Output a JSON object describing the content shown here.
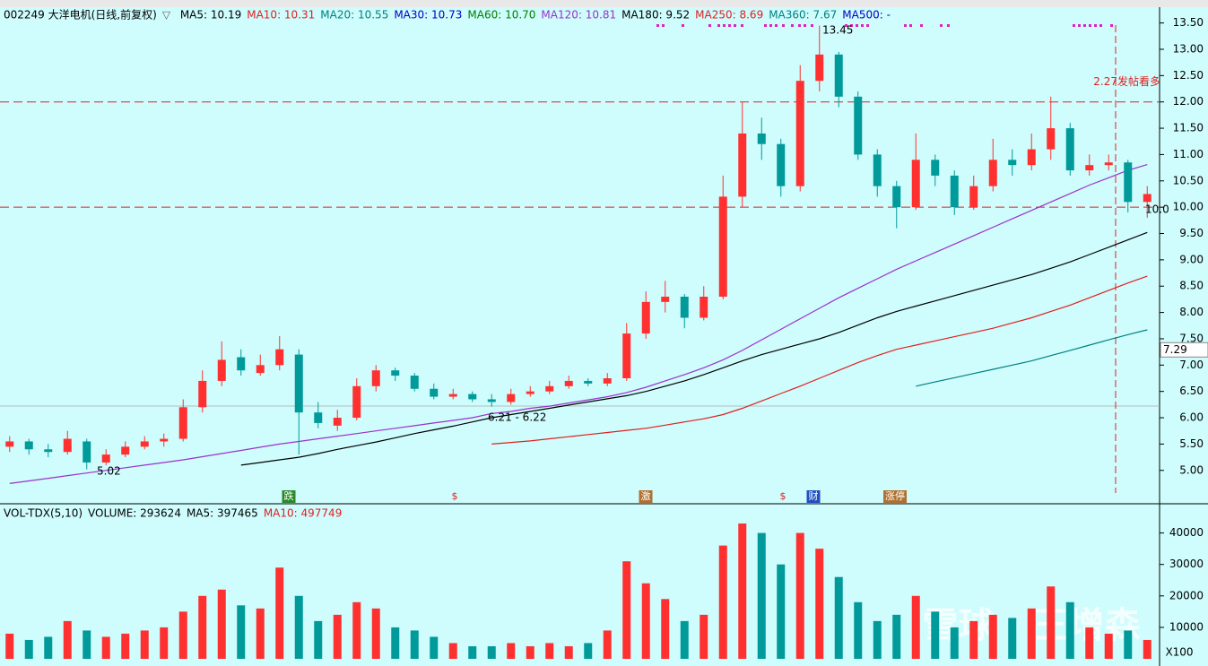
{
  "header": {
    "code_name": "002249 大洋电机(日线,前复权)",
    "ma_legend": [
      {
        "label": "MA5: 10.19",
        "color": "#000000"
      },
      {
        "label": "MA10: 10.31",
        "color": "#e02020"
      },
      {
        "label": "MA20: 10.55",
        "color": "#008080"
      },
      {
        "label": "MA30: 10.73",
        "color": "#0000c8"
      },
      {
        "label": "MA60: 10.70",
        "color": "#008000"
      },
      {
        "label": "MA120: 10.81",
        "color": "#9933cc"
      },
      {
        "label": "MA180: 9.52",
        "color": "#000000"
      },
      {
        "label": "MA250: 8.69",
        "color": "#e02020"
      },
      {
        "label": "MA360: 7.67",
        "color": "#008080"
      },
      {
        "label": "MA500: -",
        "color": "#0000c8"
      }
    ]
  },
  "chart_data": [
    {
      "type": "candlestick",
      "open": [
        5.45,
        5.55,
        5.4,
        5.35,
        5.55,
        5.15,
        5.3,
        5.45,
        5.55,
        5.6,
        6.2,
        6.7,
        7.15,
        6.85,
        7.0,
        7.2,
        6.1,
        5.85,
        6.0,
        6.6,
        6.9,
        6.8,
        6.55,
        6.4,
        6.45,
        6.35,
        6.3,
        6.45,
        6.5,
        6.6,
        6.7,
        6.65,
        6.75,
        7.6,
        8.2,
        8.3,
        7.9,
        8.3,
        10.2,
        11.4,
        11.2,
        10.4,
        12.4,
        12.9,
        12.1,
        11.0,
        10.4,
        10.0,
        10.9,
        10.6,
        10.0,
        10.4,
        10.9,
        10.8,
        11.1,
        11.5,
        10.7,
        10.8,
        10.85,
        10.1
      ],
      "high": [
        5.65,
        5.6,
        5.5,
        5.75,
        5.6,
        5.4,
        5.55,
        5.65,
        5.7,
        6.35,
        6.9,
        7.45,
        7.3,
        7.2,
        7.55,
        7.3,
        6.3,
        6.15,
        6.75,
        7.0,
        6.95,
        6.85,
        6.65,
        6.55,
        6.5,
        6.45,
        6.55,
        6.6,
        6.7,
        6.8,
        6.75,
        6.85,
        7.8,
        8.4,
        8.6,
        8.35,
        8.5,
        10.6,
        12.0,
        11.7,
        11.3,
        12.7,
        13.45,
        12.95,
        12.2,
        11.1,
        10.5,
        11.4,
        11.0,
        10.7,
        10.6,
        11.3,
        11.1,
        11.4,
        12.1,
        11.6,
        11.0,
        11.0,
        10.9,
        10.4
      ],
      "low": [
        5.35,
        5.3,
        5.25,
        5.3,
        5.02,
        5.1,
        5.25,
        5.4,
        5.45,
        5.55,
        6.1,
        6.6,
        6.8,
        6.8,
        6.9,
        5.3,
        5.8,
        5.75,
        5.95,
        6.5,
        6.7,
        6.5,
        6.35,
        6.35,
        6.3,
        6.21,
        6.25,
        6.4,
        6.45,
        6.55,
        6.6,
        6.6,
        6.7,
        7.5,
        8.0,
        7.7,
        7.85,
        8.25,
        10.0,
        10.9,
        10.2,
        10.3,
        12.2,
        11.9,
        10.9,
        10.2,
        9.6,
        9.95,
        10.4,
        9.85,
        9.95,
        10.3,
        10.6,
        10.7,
        10.9,
        10.6,
        10.6,
        10.7,
        9.9,
        9.8
      ],
      "close": [
        5.55,
        5.4,
        5.35,
        5.6,
        5.15,
        5.3,
        5.45,
        5.55,
        5.6,
        6.2,
        6.7,
        7.1,
        6.9,
        7.0,
        7.3,
        6.1,
        5.9,
        6.0,
        6.6,
        6.9,
        6.8,
        6.55,
        6.4,
        6.45,
        6.35,
        6.3,
        6.45,
        6.5,
        6.6,
        6.7,
        6.65,
        6.75,
        7.6,
        8.2,
        8.3,
        7.9,
        8.3,
        10.2,
        11.4,
        11.2,
        10.4,
        12.4,
        12.9,
        12.1,
        11.0,
        10.4,
        10.0,
        10.9,
        10.6,
        10.0,
        10.4,
        10.9,
        10.8,
        11.1,
        11.5,
        10.7,
        10.8,
        10.85,
        10.1,
        10.25
      ],
      "up_color": "#ff3030",
      "down_color": "#009a9a",
      "lines": [
        {
          "name": "MA120",
          "color": "#9933cc",
          "values": [
            4.75,
            4.8,
            4.85,
            4.9,
            4.95,
            5.0,
            5.05,
            5.1,
            5.15,
            5.2,
            5.26,
            5.32,
            5.38,
            5.44,
            5.5,
            5.55,
            5.6,
            5.65,
            5.7,
            5.75,
            5.8,
            5.85,
            5.9,
            5.95,
            6.0,
            6.08,
            6.12,
            6.18,
            6.22,
            6.28,
            6.34,
            6.4,
            6.48,
            6.58,
            6.7,
            6.82,
            6.95,
            7.1,
            7.28,
            7.48,
            7.68,
            7.88,
            8.08,
            8.28,
            8.46,
            8.64,
            8.82,
            8.98,
            9.14,
            9.3,
            9.46,
            9.62,
            9.78,
            9.94,
            10.1,
            10.26,
            10.42,
            10.56,
            10.7,
            10.81
          ]
        },
        {
          "name": "MA180",
          "color": "#000000",
          "values": [
            null,
            null,
            null,
            null,
            null,
            null,
            null,
            null,
            null,
            null,
            null,
            null,
            5.1,
            5.15,
            5.2,
            5.25,
            5.32,
            5.4,
            5.47,
            5.54,
            5.62,
            5.7,
            5.77,
            5.84,
            5.92,
            6.0,
            6.06,
            6.12,
            6.18,
            6.24,
            6.3,
            6.36,
            6.42,
            6.5,
            6.6,
            6.7,
            6.82,
            6.95,
            7.08,
            7.2,
            7.3,
            7.4,
            7.5,
            7.62,
            7.76,
            7.9,
            8.02,
            8.12,
            8.22,
            8.32,
            8.42,
            8.52,
            8.62,
            8.72,
            8.84,
            8.96,
            9.1,
            9.24,
            9.38,
            9.52
          ]
        },
        {
          "name": "MA250",
          "color": "#e02020",
          "values": [
            null,
            null,
            null,
            null,
            null,
            null,
            null,
            null,
            null,
            null,
            null,
            null,
            null,
            null,
            null,
            null,
            null,
            null,
            null,
            null,
            null,
            null,
            null,
            null,
            null,
            5.5,
            5.53,
            5.56,
            5.6,
            5.64,
            5.68,
            5.72,
            5.76,
            5.8,
            5.86,
            5.92,
            5.98,
            6.06,
            6.18,
            6.32,
            6.46,
            6.6,
            6.75,
            6.9,
            7.05,
            7.18,
            7.3,
            7.38,
            7.46,
            7.54,
            7.62,
            7.7,
            7.8,
            7.9,
            8.02,
            8.14,
            8.28,
            8.42,
            8.56,
            8.69
          ]
        },
        {
          "name": "MA360",
          "color": "#008080",
          "values": [
            null,
            null,
            null,
            null,
            null,
            null,
            null,
            null,
            null,
            null,
            null,
            null,
            null,
            null,
            null,
            null,
            null,
            null,
            null,
            null,
            null,
            null,
            null,
            null,
            null,
            null,
            null,
            null,
            null,
            null,
            null,
            null,
            null,
            null,
            null,
            null,
            null,
            null,
            null,
            null,
            null,
            null,
            null,
            null,
            null,
            null,
            null,
            6.6,
            6.68,
            6.76,
            6.84,
            6.92,
            7.0,
            7.08,
            7.18,
            7.28,
            7.38,
            7.48,
            7.58,
            7.67
          ]
        }
      ],
      "ylim": [
        4.4,
        13.8
      ],
      "yticks": [
        {
          "value": 5,
          "label": "5.00"
        },
        {
          "value": 5.5,
          "label": "5.50"
        },
        {
          "value": 6,
          "label": "6.00"
        },
        {
          "value": 6.5,
          "label": "6.50"
        },
        {
          "value": 7,
          "label": "7.00"
        },
        {
          "value": 7.5,
          "label": "7.50"
        },
        {
          "value": 8,
          "label": "8.00"
        },
        {
          "value": 8.5,
          "label": "8.50"
        },
        {
          "value": 9,
          "label": "9.00"
        },
        {
          "value": 9.5,
          "label": "9.50"
        },
        {
          "value": 10,
          "label": "10.00"
        },
        {
          "value": 10.5,
          "label": "10.50"
        },
        {
          "value": 11,
          "label": "11.00"
        },
        {
          "value": 11.5,
          "label": "11.50"
        },
        {
          "value": 12,
          "label": "12.00"
        },
        {
          "value": 12.5,
          "label": "12.50"
        },
        {
          "value": 13,
          "label": "13.00"
        },
        {
          "value": 13.5,
          "label": "13.50"
        }
      ],
      "hlines": [
        12,
        10
      ],
      "current_price": 7.29,
      "annotations": [
        "13.45",
        "6.21 - 6.22",
        "5.02",
        "10.0",
        "2.27发帖看多"
      ],
      "events": [
        "跌",
        "$",
        "激",
        "$",
        "财",
        "涨停"
      ]
    },
    {
      "type": "bar",
      "legend": [
        {
          "label": "VOL-TDX(5,10)",
          "color": "#000000"
        },
        {
          "label": "VOLUME: 293624",
          "color": "#000000"
        },
        {
          "label": "MA5: 397465",
          "color": "#000000"
        },
        {
          "label": "MA10: 497749",
          "color": "#e02020"
        }
      ],
      "values": [
        8000,
        6000,
        7000,
        12000,
        9000,
        7000,
        8000,
        9000,
        10000,
        15000,
        20000,
        22000,
        17000,
        16000,
        29000,
        20000,
        12000,
        14000,
        18000,
        16000,
        10000,
        9000,
        7000,
        5000,
        4000,
        4000,
        5000,
        4000,
        5000,
        4000,
        5000,
        9000,
        31000,
        24000,
        19000,
        12000,
        14000,
        36000,
        43000,
        40000,
        30000,
        40000,
        35000,
        26000,
        18000,
        12000,
        14000,
        20000,
        15000,
        10000,
        12000,
        14000,
        13000,
        16000,
        23000,
        18000,
        10000,
        8000,
        9000,
        6000
      ],
      "ylim": [
        0,
        49000
      ],
      "yticks": [
        10000,
        20000,
        30000,
        40000
      ],
      "unit_label": "X100"
    }
  ],
  "watermark": "雪球 · 王增森"
}
